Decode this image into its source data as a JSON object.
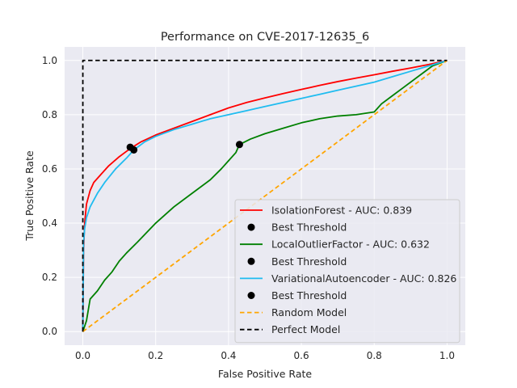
{
  "chart_data": {
    "type": "line",
    "title": "Performance on CVE-2017-12635_6",
    "xlabel": "False Positive Rate",
    "ylabel": "True Positive Rate",
    "xlim": [
      -0.05,
      1.05
    ],
    "ylim": [
      -0.05,
      1.05
    ],
    "xticks": [
      0.0,
      0.2,
      0.4,
      0.6,
      0.8,
      1.0
    ],
    "yticks": [
      0.0,
      0.2,
      0.4,
      0.6,
      0.8,
      1.0
    ],
    "xtick_labels": [
      "0.0",
      "0.2",
      "0.4",
      "0.6",
      "0.8",
      "1.0"
    ],
    "ytick_labels": [
      "0.0",
      "0.2",
      "0.4",
      "0.6",
      "0.8",
      "1.0"
    ],
    "grid": true,
    "background": "#eaeaf2",
    "legend_position": "lower-right",
    "series": [
      {
        "name": "IsolationForest - AUC: 0.839",
        "color": "#ff0000",
        "style": "solid",
        "x": [
          0.0,
          0.002,
          0.005,
          0.01,
          0.02,
          0.03,
          0.05,
          0.07,
          0.1,
          0.13,
          0.16,
          0.2,
          0.25,
          0.3,
          0.35,
          0.4,
          0.45,
          0.5,
          0.55,
          0.6,
          0.65,
          0.7,
          0.75,
          0.8,
          0.85,
          0.9,
          0.95,
          1.0
        ],
        "y": [
          0.0,
          0.3,
          0.4,
          0.47,
          0.52,
          0.55,
          0.58,
          0.61,
          0.645,
          0.675,
          0.7,
          0.725,
          0.75,
          0.775,
          0.8,
          0.825,
          0.845,
          0.862,
          0.878,
          0.893,
          0.908,
          0.922,
          0.935,
          0.947,
          0.96,
          0.972,
          0.985,
          1.0
        ]
      },
      {
        "name": "Best Threshold",
        "color": "#000000",
        "style": "marker",
        "x": [
          0.13
        ],
        "y": [
          0.68
        ]
      },
      {
        "name": "LocalOutlierFactor - AUC: 0.632",
        "color": "#008000",
        "style": "solid",
        "x": [
          0.0,
          0.01,
          0.02,
          0.04,
          0.06,
          0.08,
          0.1,
          0.12,
          0.15,
          0.2,
          0.25,
          0.3,
          0.35,
          0.38,
          0.4,
          0.42,
          0.43,
          0.46,
          0.5,
          0.55,
          0.6,
          0.65,
          0.7,
          0.75,
          0.8,
          0.82,
          0.85,
          0.88,
          0.92,
          0.96,
          1.0
        ],
        "y": [
          0.0,
          0.04,
          0.12,
          0.15,
          0.19,
          0.22,
          0.26,
          0.29,
          0.33,
          0.4,
          0.46,
          0.51,
          0.56,
          0.6,
          0.63,
          0.66,
          0.69,
          0.71,
          0.73,
          0.75,
          0.77,
          0.785,
          0.795,
          0.8,
          0.81,
          0.84,
          0.87,
          0.9,
          0.94,
          0.98,
          1.0
        ]
      },
      {
        "name": "Best Threshold",
        "color": "#000000",
        "style": "marker",
        "x": [
          0.43
        ],
        "y": [
          0.69
        ]
      },
      {
        "name": "VariationalAutoencoder - AUC: 0.826",
        "color": "#1fbcf0",
        "style": "solid",
        "x": [
          0.0,
          0.002,
          0.005,
          0.01,
          0.02,
          0.04,
          0.06,
          0.09,
          0.12,
          0.14,
          0.17,
          0.2,
          0.25,
          0.3,
          0.35,
          0.4,
          0.45,
          0.5,
          0.55,
          0.6,
          0.65,
          0.7,
          0.75,
          0.8,
          0.85,
          0.9,
          0.95,
          1.0
        ],
        "y": [
          0.0,
          0.33,
          0.38,
          0.42,
          0.46,
          0.51,
          0.55,
          0.6,
          0.64,
          0.67,
          0.7,
          0.72,
          0.745,
          0.765,
          0.785,
          0.8,
          0.815,
          0.83,
          0.845,
          0.86,
          0.875,
          0.89,
          0.905,
          0.92,
          0.94,
          0.96,
          0.98,
          1.0
        ]
      },
      {
        "name": "Best Threshold",
        "color": "#000000",
        "style": "marker",
        "x": [
          0.14
        ],
        "y": [
          0.67
        ]
      },
      {
        "name": "Random Model",
        "color": "#ffa500",
        "style": "dashed",
        "x": [
          0.0,
          1.0
        ],
        "y": [
          0.0,
          1.0
        ]
      },
      {
        "name": "Perfect Model",
        "color": "#000000",
        "style": "dashed",
        "x": [
          0.0,
          0.0,
          1.0
        ],
        "y": [
          0.0,
          1.0,
          1.0
        ]
      }
    ]
  }
}
